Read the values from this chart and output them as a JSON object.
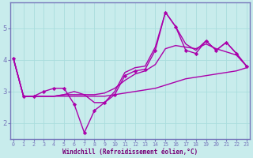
{
  "xlabel": "Windchill (Refroidissement éolien,°C)",
  "background_color": "#c8ecec",
  "spine_color": "#7777bb",
  "line_color": "#aa00aa",
  "grid_color": "#aadddd",
  "hours": [
    0,
    1,
    2,
    3,
    4,
    5,
    6,
    7,
    8,
    9,
    10,
    11,
    12,
    13,
    14,
    15,
    16,
    17,
    18,
    19,
    20,
    21,
    22,
    23
  ],
  "actual": [
    4.05,
    2.85,
    2.85,
    3.0,
    3.1,
    3.1,
    2.6,
    1.7,
    2.4,
    2.65,
    2.9,
    3.5,
    3.65,
    3.7,
    4.3,
    5.5,
    5.05,
    4.3,
    4.2,
    4.6,
    4.3,
    4.55,
    4.2,
    3.8
  ],
  "trend_low": [
    4.05,
    2.85,
    2.85,
    2.85,
    2.85,
    2.85,
    2.85,
    2.85,
    2.85,
    2.85,
    2.9,
    2.95,
    3.0,
    3.05,
    3.1,
    3.2,
    3.3,
    3.4,
    3.45,
    3.5,
    3.55,
    3.6,
    3.65,
    3.75
  ],
  "trend_mid": [
    4.05,
    2.85,
    2.85,
    2.85,
    2.85,
    2.9,
    2.9,
    2.9,
    2.9,
    2.95,
    3.1,
    3.35,
    3.55,
    3.65,
    3.85,
    4.35,
    4.45,
    4.4,
    4.35,
    4.5,
    4.35,
    4.25,
    4.15,
    3.8
  ],
  "trend_high": [
    4.05,
    2.85,
    2.85,
    2.85,
    2.85,
    2.9,
    3.0,
    2.9,
    2.65,
    2.65,
    3.0,
    3.6,
    3.75,
    3.8,
    4.4,
    5.5,
    5.05,
    4.5,
    4.3,
    4.6,
    4.3,
    4.55,
    4.2,
    3.8
  ],
  "xlim": [
    -0.3,
    23.3
  ],
  "ylim": [
    1.5,
    5.8
  ],
  "yticks": [
    2,
    3,
    4,
    5
  ],
  "xticks": [
    0,
    1,
    2,
    3,
    4,
    5,
    6,
    7,
    8,
    9,
    10,
    11,
    12,
    13,
    14,
    15,
    16,
    17,
    18,
    19,
    20,
    21,
    22,
    23
  ]
}
